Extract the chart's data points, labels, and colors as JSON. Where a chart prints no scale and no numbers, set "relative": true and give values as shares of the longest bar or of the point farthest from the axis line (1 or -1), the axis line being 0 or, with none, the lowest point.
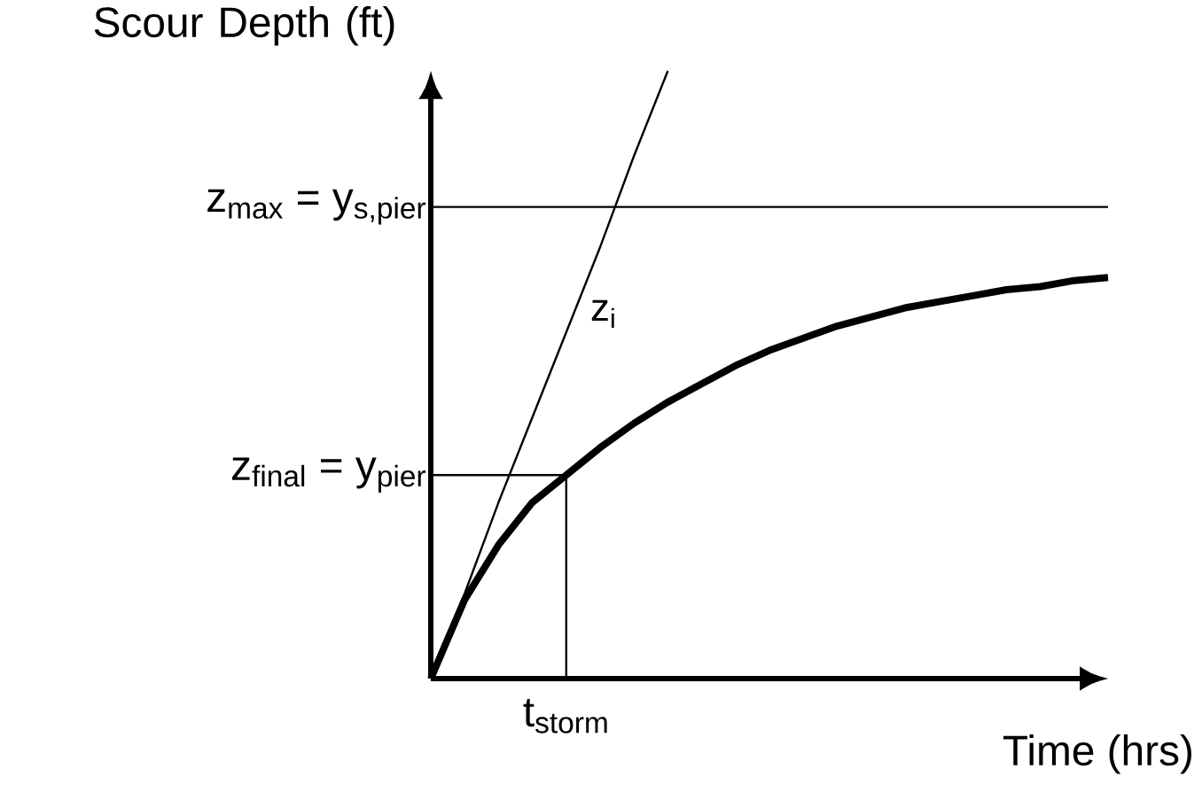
{
  "chart_data": {
    "type": "line",
    "relative": true,
    "xlabel": "Time (hrs)",
    "ylabel": "Scour Depth (ft)",
    "categories": [
      null,
      null,
      null,
      null,
      null,
      null,
      null,
      null,
      null,
      null,
      null,
      null,
      null,
      null,
      null,
      null,
      null,
      null,
      null,
      null,
      null
    ],
    "series": [
      {
        "color": "#000000",
        "values": [
          0,
          0.13,
          0.22,
          0.29,
          0.335,
          0.38,
          0.42,
          0.455,
          0.485,
          0.515,
          0.54,
          0.56,
          0.58,
          0.595,
          0.61,
          0.62,
          0.63,
          0.64,
          0.645,
          0.655,
          0.66
        ]
      },
      {
        "color": "#000000",
        "values": [
          0,
          0.14,
          0.29,
          0.43,
          0.57,
          0.71,
          0.86,
          1,
          null,
          null,
          null,
          null,
          null,
          null,
          null,
          null,
          null,
          null,
          null,
          null,
          null
        ]
      }
    ],
    "ref_lines": [
      {
        "axis": "y",
        "value": 0.776,
        "label": "z$_{max}$ = y$_{s,pier}$"
      },
      {
        "axis": "y",
        "value": 0.335,
        "label": "z$_{final}$ = y$_{pier}$"
      }
    ],
    "annotations": [
      "z$_{i}$",
      {
        "text": "t$_{storm}$",
        "y": 0.335
      }
    ]
  }
}
